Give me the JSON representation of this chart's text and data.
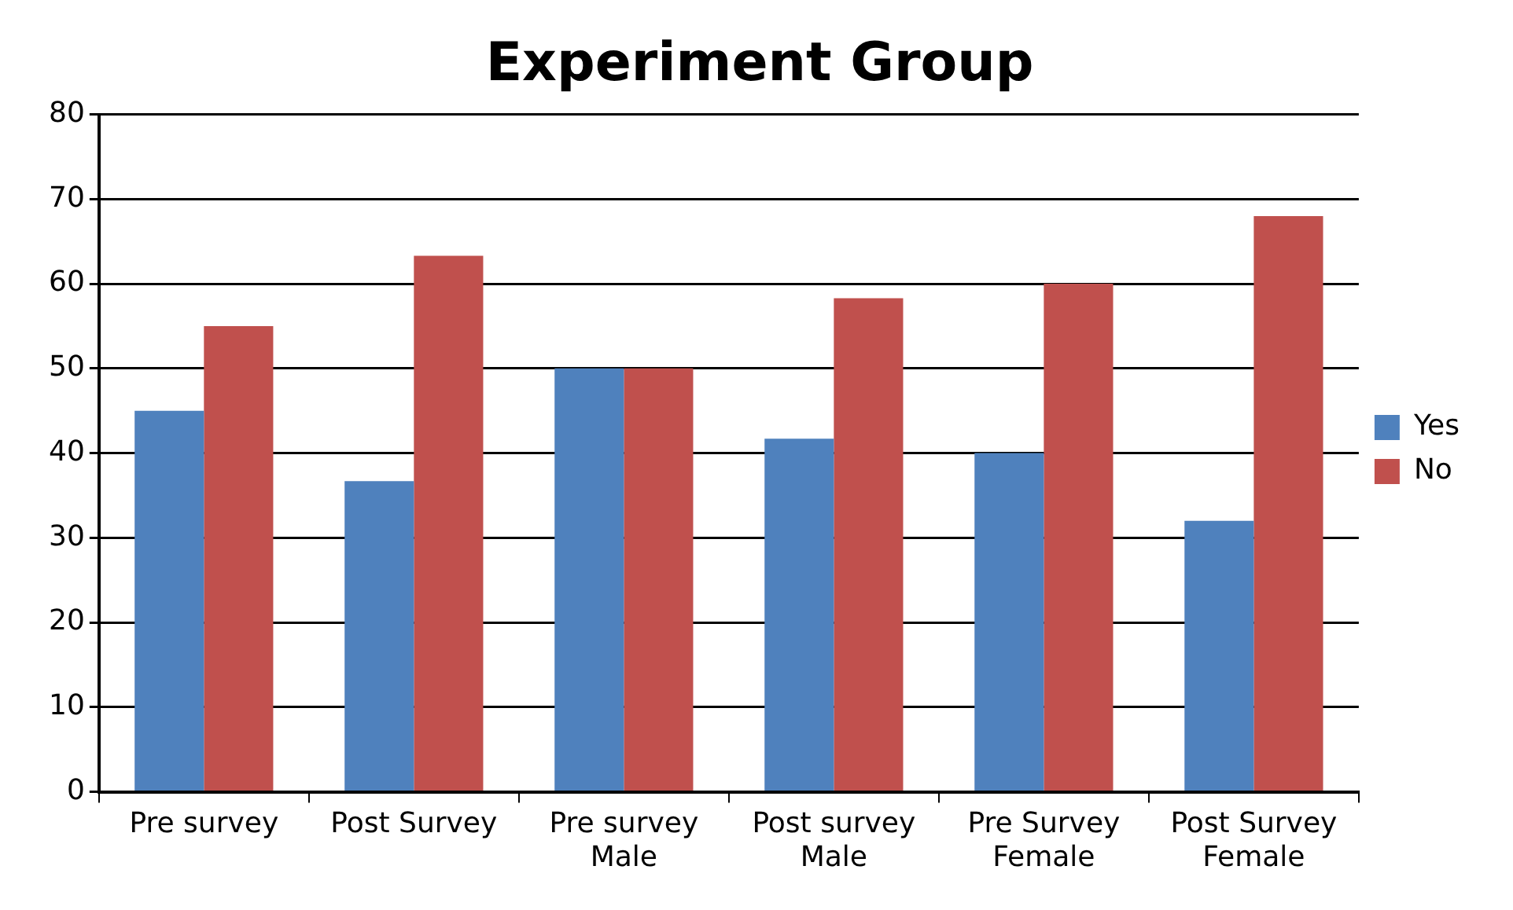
{
  "chart_data": {
    "type": "bar",
    "title": "Experiment Group",
    "categories": [
      "Pre survey",
      "Post Survey",
      "Pre survey Male",
      "Post survey Male",
      "Pre Survey Female",
      "Post Survey Female"
    ],
    "series": [
      {
        "name": "Yes",
        "color": "#4f81bd",
        "values": [
          45,
          36.7,
          50,
          41.7,
          40,
          32
        ]
      },
      {
        "name": "No",
        "color": "#c0504d",
        "values": [
          55,
          63.3,
          50,
          58.3,
          60,
          68
        ]
      }
    ],
    "ylim": [
      0,
      80
    ],
    "yticks": [
      0,
      10,
      20,
      30,
      40,
      50,
      60,
      70,
      80
    ],
    "grid": "y",
    "legend": "right"
  }
}
